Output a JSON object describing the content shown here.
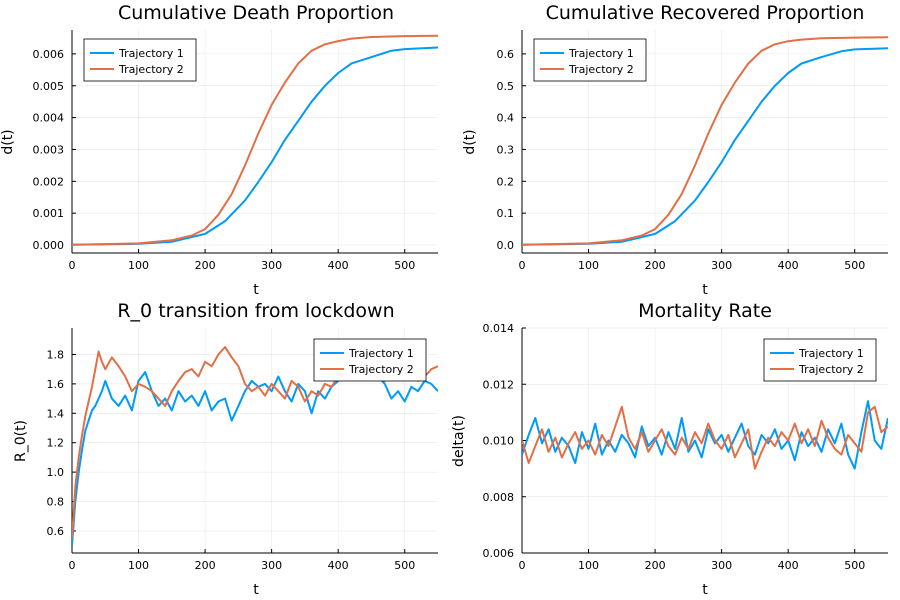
{
  "colors": {
    "series1": "#009AF9",
    "series2": "#E26F46"
  },
  "chart_data": [
    {
      "type": "line",
      "title": "Cumulative Death Proportion",
      "xlabel": "t",
      "ylabel": "d(t)",
      "xlim": [
        0,
        550
      ],
      "ylim": [
        -0.00025,
        0.00675
      ],
      "xticks": [
        0,
        100,
        200,
        300,
        400,
        500
      ],
      "yticks": [
        0,
        0.001,
        0.002,
        0.003,
        0.004,
        0.005,
        0.006
      ],
      "ytick_labels": [
        "0.000",
        "0.001",
        "0.002",
        "0.003",
        "0.004",
        "0.005",
        "0.006"
      ],
      "grid": true,
      "legend": "top-left",
      "series": [
        {
          "name": "Trajectory 1",
          "x": [
            0,
            100,
            150,
            200,
            230,
            260,
            280,
            300,
            320,
            340,
            360,
            380,
            400,
            420,
            450,
            480,
            500,
            550
          ],
          "y": [
            1e-05,
            4e-05,
            0.0001,
            0.00035,
            0.00075,
            0.0014,
            0.00198,
            0.0026,
            0.0033,
            0.0039,
            0.0045,
            0.005,
            0.0054,
            0.0057,
            0.0059,
            0.0061,
            0.00615,
            0.0062
          ]
        },
        {
          "name": "Trajectory 2",
          "x": [
            0,
            100,
            150,
            180,
            200,
            220,
            240,
            260,
            280,
            300,
            320,
            340,
            360,
            380,
            400,
            420,
            450,
            500,
            550
          ],
          "y": [
            1e-05,
            5e-05,
            0.00015,
            0.0003,
            0.0005,
            0.00095,
            0.0016,
            0.0025,
            0.0035,
            0.0044,
            0.0051,
            0.0057,
            0.0061,
            0.0063,
            0.0064,
            0.00648,
            0.00653,
            0.00656,
            0.00657
          ]
        }
      ]
    },
    {
      "type": "line",
      "title": "Cumulative Recovered Proportion",
      "xlabel": "t",
      "ylabel": "d(t)",
      "xlim": [
        0,
        550
      ],
      "ylim": [
        -0.025,
        0.675
      ],
      "xticks": [
        0,
        100,
        200,
        300,
        400,
        500
      ],
      "yticks": [
        0,
        0.1,
        0.2,
        0.3,
        0.4,
        0.5,
        0.6
      ],
      "ytick_labels": [
        "0.0",
        "0.1",
        "0.2",
        "0.3",
        "0.4",
        "0.5",
        "0.6"
      ],
      "grid": true,
      "legend": "top-left",
      "series": [
        {
          "name": "Trajectory 1",
          "x": [
            0,
            100,
            150,
            200,
            230,
            260,
            280,
            300,
            320,
            340,
            360,
            380,
            400,
            420,
            450,
            480,
            500,
            550
          ],
          "y": [
            0.001,
            0.004,
            0.01,
            0.035,
            0.075,
            0.14,
            0.198,
            0.26,
            0.33,
            0.39,
            0.45,
            0.5,
            0.54,
            0.57,
            0.59,
            0.608,
            0.614,
            0.618
          ]
        },
        {
          "name": "Trajectory 2",
          "x": [
            0,
            100,
            150,
            180,
            200,
            220,
            240,
            260,
            280,
            300,
            320,
            340,
            360,
            380,
            400,
            420,
            450,
            500,
            550
          ],
          "y": [
            0.001,
            0.005,
            0.015,
            0.03,
            0.05,
            0.095,
            0.16,
            0.25,
            0.35,
            0.44,
            0.51,
            0.57,
            0.61,
            0.63,
            0.64,
            0.645,
            0.649,
            0.651,
            0.652
          ]
        }
      ]
    },
    {
      "type": "line",
      "title": "R_0 transition from lockdown",
      "xlabel": "t",
      "ylabel": "R_0(t)",
      "xlim": [
        0,
        550
      ],
      "ylim": [
        0.45,
        1.98
      ],
      "xticks": [
        0,
        100,
        200,
        300,
        400,
        500
      ],
      "yticks": [
        0.6,
        0.8,
        1.0,
        1.2,
        1.4,
        1.6,
        1.8
      ],
      "ytick_labels": [
        "0.6",
        "0.8",
        "1.0",
        "1.2",
        "1.4",
        "1.6",
        "1.8"
      ],
      "grid": true,
      "legend": "top-right",
      "series": [
        {
          "name": "Trajectory 1",
          "x": [
            0,
            5,
            10,
            15,
            20,
            25,
            30,
            35,
            40,
            45,
            50,
            60,
            70,
            80,
            90,
            100,
            110,
            120,
            130,
            140,
            150,
            160,
            170,
            180,
            190,
            200,
            210,
            220,
            230,
            240,
            250,
            260,
            270,
            280,
            290,
            300,
            310,
            320,
            330,
            340,
            350,
            360,
            370,
            380,
            390,
            400,
            410,
            420,
            430,
            440,
            450,
            460,
            470,
            480,
            490,
            500,
            510,
            520,
            530,
            540,
            550
          ],
          "y": [
            0.5,
            0.8,
            1.0,
            1.15,
            1.28,
            1.35,
            1.42,
            1.45,
            1.5,
            1.55,
            1.62,
            1.5,
            1.45,
            1.52,
            1.42,
            1.62,
            1.68,
            1.55,
            1.45,
            1.5,
            1.42,
            1.55,
            1.48,
            1.52,
            1.45,
            1.55,
            1.42,
            1.48,
            1.5,
            1.35,
            1.45,
            1.55,
            1.62,
            1.58,
            1.6,
            1.55,
            1.65,
            1.55,
            1.48,
            1.6,
            1.55,
            1.4,
            1.55,
            1.5,
            1.58,
            1.62,
            1.68,
            1.72,
            1.65,
            1.7,
            1.75,
            1.65,
            1.6,
            1.5,
            1.55,
            1.48,
            1.58,
            1.55,
            1.62,
            1.6,
            1.55
          ]
        },
        {
          "name": "Trajectory 2",
          "x": [
            0,
            5,
            10,
            15,
            20,
            25,
            30,
            35,
            40,
            45,
            50,
            60,
            70,
            80,
            90,
            100,
            110,
            120,
            130,
            140,
            150,
            160,
            170,
            180,
            190,
            200,
            210,
            220,
            230,
            240,
            250,
            260,
            270,
            280,
            290,
            300,
            310,
            320,
            330,
            340,
            350,
            360,
            370,
            380,
            390,
            400,
            410,
            420,
            430,
            440,
            450,
            460,
            470,
            480,
            490,
            500,
            510,
            520,
            530,
            540,
            550
          ],
          "y": [
            0.55,
            0.9,
            1.1,
            1.25,
            1.38,
            1.48,
            1.58,
            1.7,
            1.82,
            1.75,
            1.7,
            1.78,
            1.72,
            1.65,
            1.55,
            1.6,
            1.58,
            1.55,
            1.5,
            1.45,
            1.55,
            1.62,
            1.68,
            1.7,
            1.65,
            1.75,
            1.72,
            1.8,
            1.85,
            1.78,
            1.72,
            1.6,
            1.55,
            1.58,
            1.52,
            1.6,
            1.55,
            1.5,
            1.62,
            1.58,
            1.48,
            1.55,
            1.52,
            1.6,
            1.58,
            1.65,
            1.7,
            1.75,
            1.8,
            1.85,
            1.72,
            1.68,
            1.62,
            1.7,
            1.65,
            1.68,
            1.7,
            1.62,
            1.65,
            1.7,
            1.72
          ]
        }
      ]
    },
    {
      "type": "line",
      "title": "Mortality Rate",
      "xlabel": "t",
      "ylabel": "delta(t)",
      "xlim": [
        0,
        550
      ],
      "ylim": [
        0.006,
        0.014
      ],
      "xticks": [
        0,
        100,
        200,
        300,
        400,
        500
      ],
      "yticks": [
        0.006,
        0.008,
        0.01,
        0.012,
        0.014
      ],
      "ytick_labels": [
        "0.006",
        "0.008",
        "0.010",
        "0.012",
        "0.014"
      ],
      "grid": true,
      "legend": "top-right",
      "series": [
        {
          "name": "Trajectory 1",
          "x": [
            0,
            10,
            20,
            30,
            40,
            50,
            60,
            70,
            80,
            90,
            100,
            110,
            120,
            130,
            140,
            150,
            160,
            170,
            180,
            190,
            200,
            210,
            220,
            230,
            240,
            250,
            260,
            270,
            280,
            290,
            300,
            310,
            320,
            330,
            340,
            350,
            360,
            370,
            380,
            390,
            400,
            410,
            420,
            430,
            440,
            450,
            460,
            470,
            480,
            490,
            500,
            510,
            520,
            530,
            540,
            550
          ],
          "y": [
            0.0095,
            0.0102,
            0.0108,
            0.0099,
            0.0104,
            0.0096,
            0.0101,
            0.0098,
            0.0092,
            0.0103,
            0.0097,
            0.0106,
            0.0095,
            0.01,
            0.0096,
            0.0102,
            0.0099,
            0.0094,
            0.0105,
            0.0098,
            0.0101,
            0.0095,
            0.0103,
            0.0097,
            0.0108,
            0.0096,
            0.01,
            0.0094,
            0.0104,
            0.0099,
            0.0102,
            0.0096,
            0.0101,
            0.0106,
            0.0098,
            0.0095,
            0.0102,
            0.0099,
            0.0104,
            0.0097,
            0.01,
            0.0093,
            0.0103,
            0.0098,
            0.0101,
            0.0096,
            0.0104,
            0.0099,
            0.0106,
            0.0095,
            0.009,
            0.0103,
            0.0114,
            0.01,
            0.0097,
            0.0108
          ]
        },
        {
          "name": "Trajectory 2",
          "x": [
            0,
            10,
            20,
            30,
            40,
            50,
            60,
            70,
            80,
            90,
            100,
            110,
            120,
            130,
            140,
            150,
            160,
            170,
            180,
            190,
            200,
            210,
            220,
            230,
            240,
            250,
            260,
            270,
            280,
            290,
            300,
            310,
            320,
            330,
            340,
            350,
            360,
            370,
            380,
            390,
            400,
            410,
            420,
            430,
            440,
            450,
            460,
            470,
            480,
            490,
            500,
            510,
            520,
            530,
            540,
            550
          ],
          "y": [
            0.01,
            0.0092,
            0.0098,
            0.0104,
            0.0096,
            0.0101,
            0.0094,
            0.0099,
            0.0103,
            0.0097,
            0.01,
            0.0095,
            0.0102,
            0.0098,
            0.0105,
            0.0112,
            0.0101,
            0.0097,
            0.0103,
            0.0096,
            0.01,
            0.0104,
            0.0098,
            0.0095,
            0.0101,
            0.0097,
            0.0103,
            0.0099,
            0.0106,
            0.01,
            0.0097,
            0.0102,
            0.0094,
            0.0099,
            0.0104,
            0.009,
            0.0096,
            0.0101,
            0.0098,
            0.0103,
            0.01,
            0.0106,
            0.0099,
            0.0104,
            0.0098,
            0.0107,
            0.0101,
            0.0097,
            0.0095,
            0.0102,
            0.0099,
            0.0096,
            0.011,
            0.0112,
            0.0103,
            0.0105
          ]
        }
      ]
    }
  ]
}
